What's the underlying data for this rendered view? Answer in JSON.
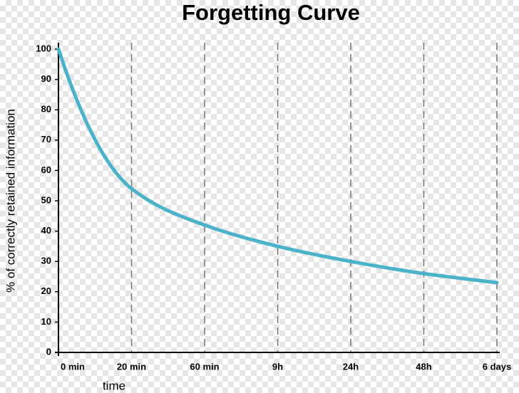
{
  "chart_data": {
    "type": "line",
    "title": "Forgetting Curve",
    "x_label": "time",
    "y_label": "% of correctly retained information",
    "categories": [
      "0 min",
      "20 min",
      "60 min",
      "9h",
      "24h",
      "48h",
      "6 days"
    ],
    "values": [
      100,
      54,
      42,
      35,
      30,
      26,
      23
    ],
    "color": "#4ab3c9",
    "ylim": [
      0,
      100
    ],
    "yticks": [
      0,
      10,
      20,
      30,
      40,
      50,
      60,
      70,
      80,
      90,
      100
    ],
    "grid": true
  }
}
